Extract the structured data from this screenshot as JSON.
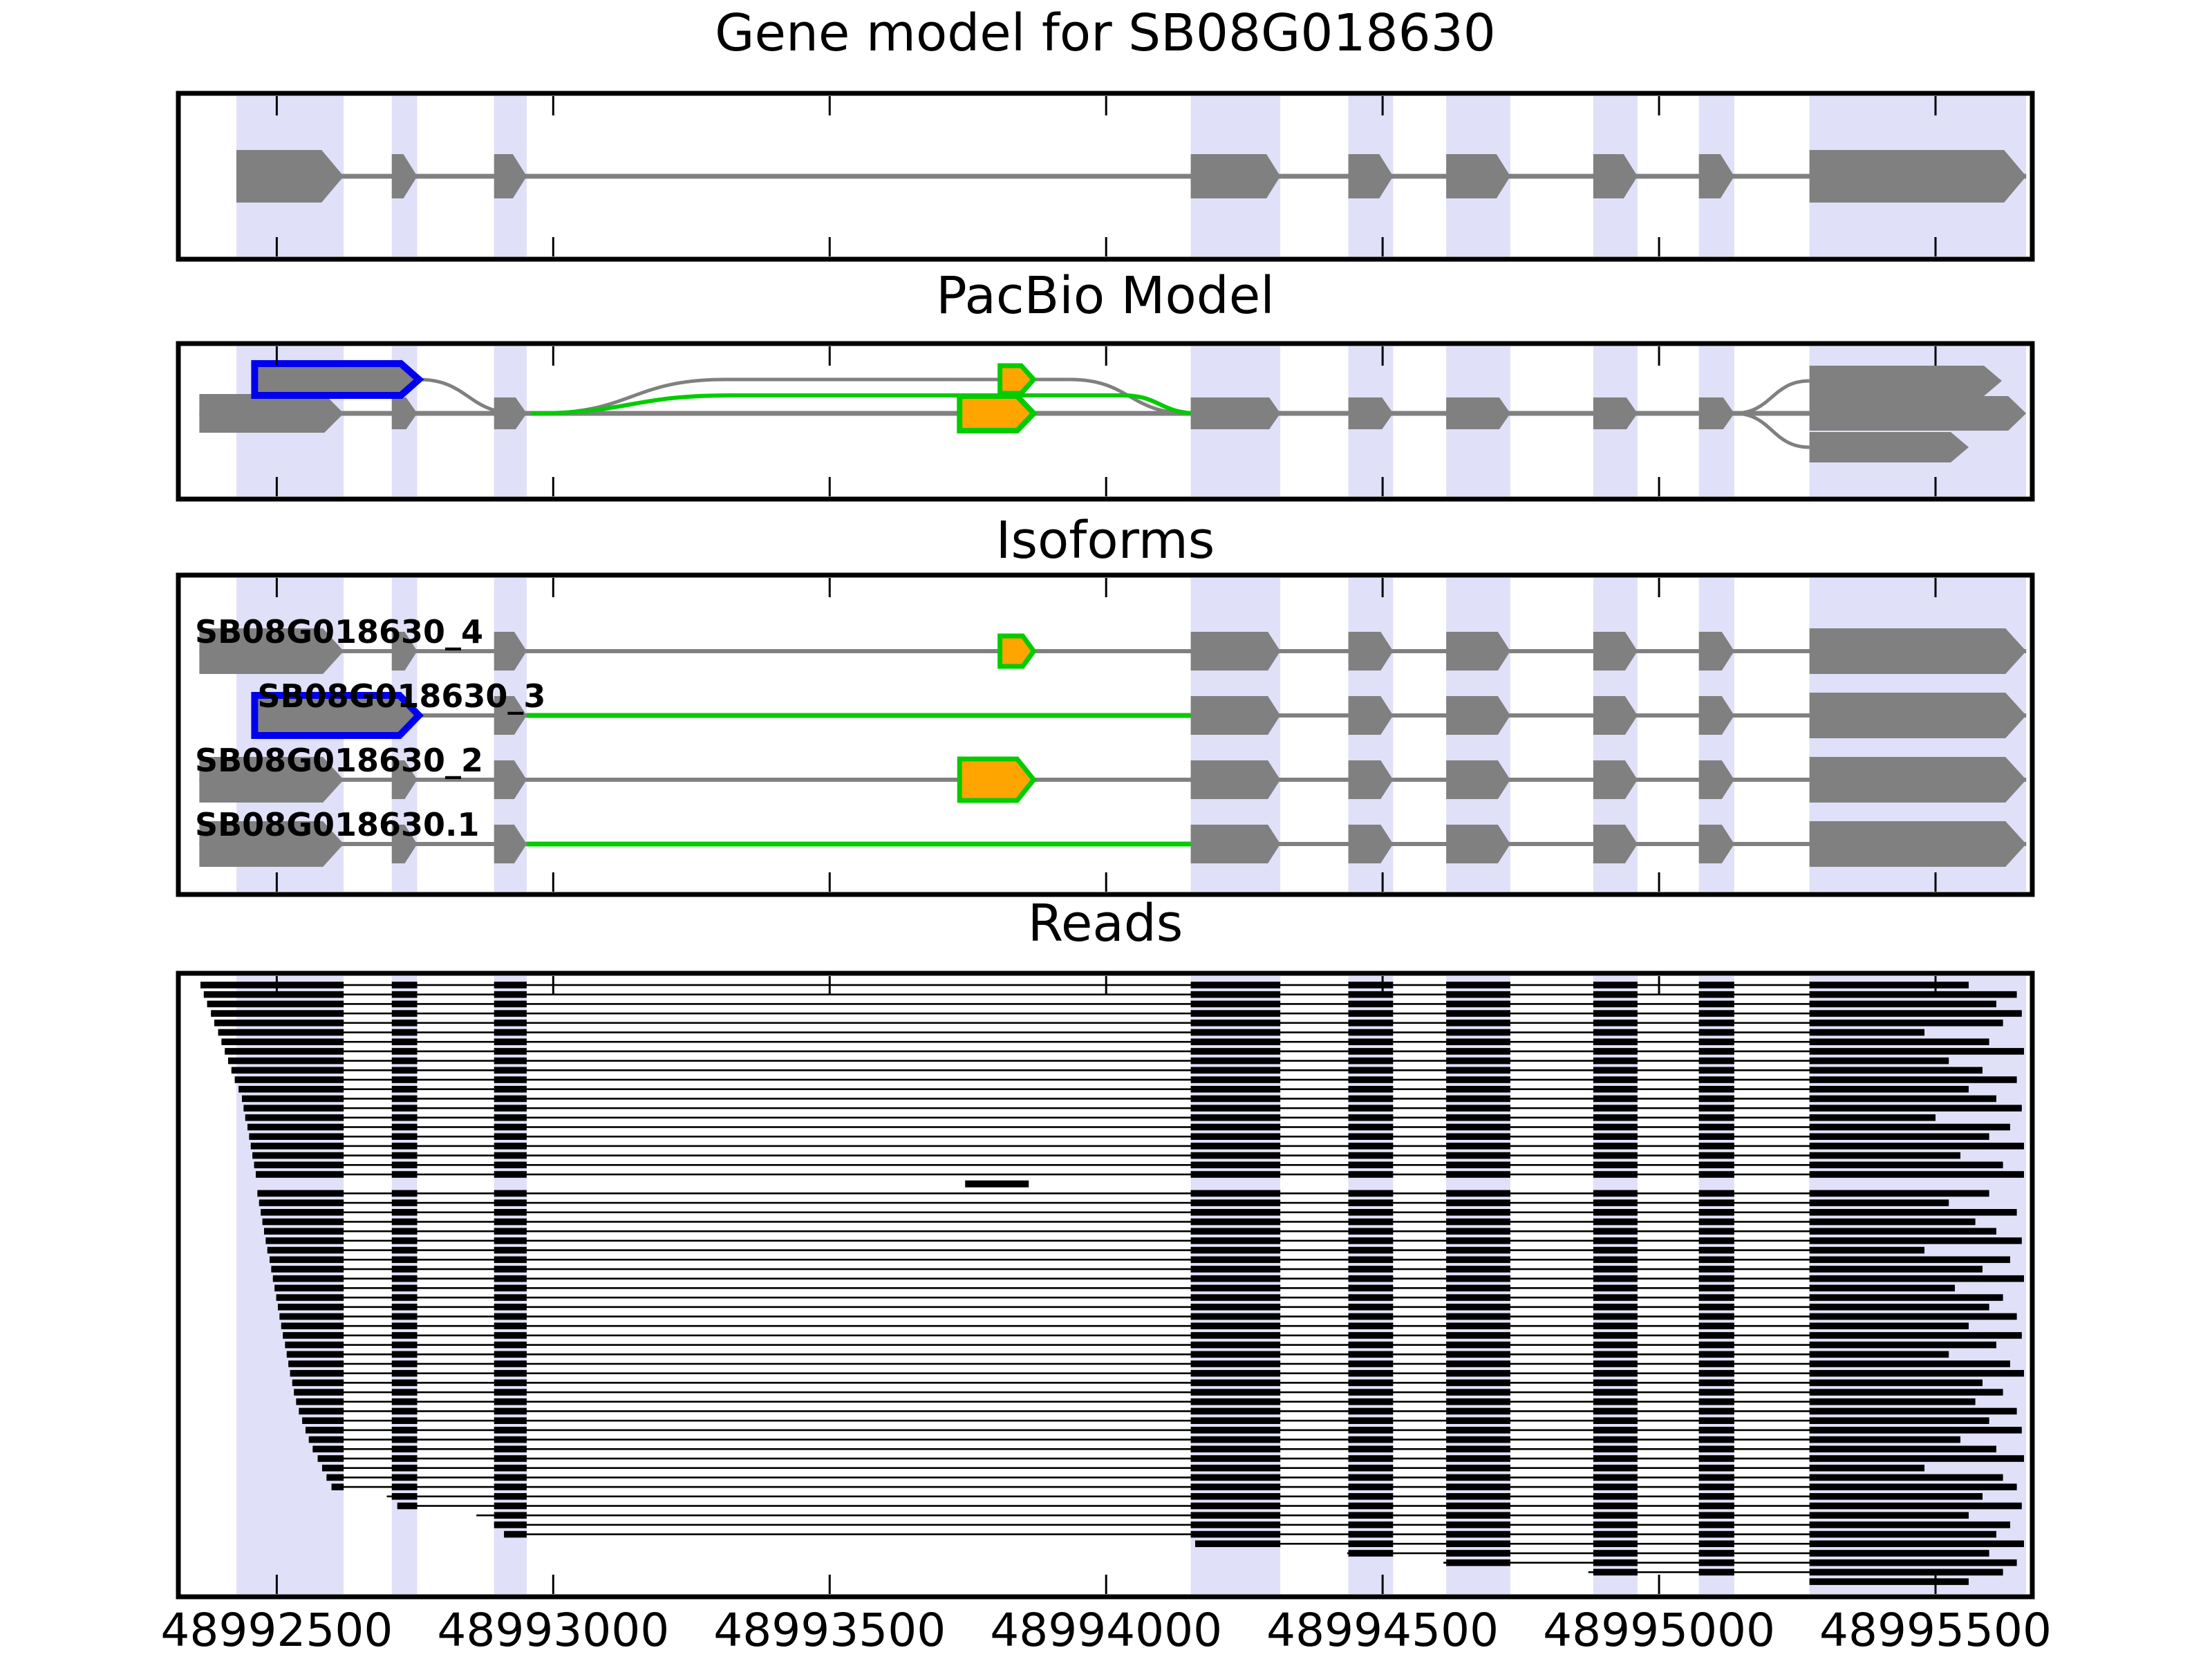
{
  "chart_data": {
    "type": "other",
    "subtype": "genome-browser-tracks",
    "titles": {
      "gene_model": "Gene model for SB08G018630",
      "pacbio": "PacBio Model",
      "isoforms": "Isoforms",
      "reads": "Reads"
    },
    "axis": {
      "bp_min": 48992322,
      "bp_max": 48995675,
      "ticks": [
        48992500,
        48993000,
        48993500,
        48994000,
        48994500,
        48995000,
        48995500
      ],
      "tick_labels": [
        "48992500",
        "48993000",
        "48993500",
        "48994000",
        "48994500",
        "48995000",
        "48995500"
      ]
    },
    "colors": {
      "exon": "#808080",
      "intron_line": "#808080",
      "band": "#e0e0f8",
      "blue": "#0000ee",
      "green": "#00cc00",
      "orange": "#ffa500",
      "read": "#000000",
      "border": "#000000"
    },
    "gene_exons": [
      {
        "s": 48992427,
        "e": 48992621,
        "big": true
      },
      {
        "s": 48992708,
        "e": 48992754
      },
      {
        "s": 48992893,
        "e": 48992952
      },
      {
        "s": 48994153,
        "e": 48994315
      },
      {
        "s": 48994438,
        "e": 48994519
      },
      {
        "s": 48994615,
        "e": 48994731
      },
      {
        "s": 48994881,
        "e": 48994961
      },
      {
        "s": 48995072,
        "e": 48995136
      },
      {
        "s": 48995272,
        "e": 48995664,
        "big": true
      }
    ],
    "pacbio": {
      "main_exons": [
        {
          "s": 48992360,
          "e": 48992621,
          "big": true
        },
        {
          "s": 48992708,
          "e": 48992754
        },
        {
          "s": 48992893,
          "e": 48992952
        },
        {
          "s": 48994153,
          "e": 48994315
        },
        {
          "s": 48994438,
          "e": 48994519
        },
        {
          "s": 48994615,
          "e": 48994731
        },
        {
          "s": 48994881,
          "e": 48994961
        },
        {
          "s": 48995072,
          "e": 48995136
        }
      ],
      "blue_exon": {
        "s": 48992460,
        "e": 48992757
      },
      "orange_small": {
        "s": 48993808,
        "e": 48993869
      },
      "orange_large": {
        "s": 48993735,
        "e": 48993869
      },
      "three_prime_ends": [
        {
          "s": 48995272,
          "e": 48995620,
          "pos": "top"
        },
        {
          "s": 48995272,
          "e": 48995664,
          "pos": "mid"
        },
        {
          "s": 48995272,
          "e": 48995560,
          "pos": "bottom"
        }
      ],
      "skip_junction": {
        "from": 48992975,
        "flat_start": 48993310,
        "flat_end": 48993935,
        "to": 48994150
      },
      "green_junction": {
        "from": 48992960,
        "flat_start": 48993320,
        "flat_end": 48994030,
        "to": 48994165
      },
      "blue_drop": {
        "from": 48992757,
        "to": 48992935
      }
    },
    "isoforms": {
      "rows": [
        {
          "label": "SB08G018630_4",
          "label_bp": 48992352,
          "exons": [
            {
              "s": 48992360,
              "e": 48992621,
              "big": true
            },
            {
              "s": 48992708,
              "e": 48992754
            },
            {
              "s": 48992893,
              "e": 48992952
            },
            {
              "s": 48993808,
              "e": 48993869,
              "style": "orange"
            },
            {
              "s": 48994153,
              "e": 48994315
            },
            {
              "s": 48994438,
              "e": 48994519
            },
            {
              "s": 48994615,
              "e": 48994731
            },
            {
              "s": 48994881,
              "e": 48994961
            },
            {
              "s": 48995072,
              "e": 48995136
            },
            {
              "s": 48995272,
              "e": 48995664,
              "big": true
            }
          ]
        },
        {
          "label": "SB08G018630_3",
          "label_bp": 48992465,
          "green_span": [
            48992952,
            48994153
          ],
          "exons": [
            {
              "s": 48992460,
              "e": 48992757,
              "style": "blue",
              "big": true
            },
            {
              "s": 48992893,
              "e": 48992952
            },
            {
              "s": 48994153,
              "e": 48994315
            },
            {
              "s": 48994438,
              "e": 48994519
            },
            {
              "s": 48994615,
              "e": 48994731
            },
            {
              "s": 48994881,
              "e": 48994961
            },
            {
              "s": 48995072,
              "e": 48995136
            },
            {
              "s": 48995272,
              "e": 48995664,
              "big": true
            }
          ]
        },
        {
          "label": "SB08G018630_2",
          "label_bp": 48992352,
          "exons": [
            {
              "s": 48992360,
              "e": 48992621,
              "big": true
            },
            {
              "s": 48992708,
              "e": 48992754
            },
            {
              "s": 48992893,
              "e": 48992952
            },
            {
              "s": 48993735,
              "e": 48993869,
              "style": "orange",
              "big": true
            },
            {
              "s": 48994153,
              "e": 48994315
            },
            {
              "s": 48994438,
              "e": 48994519
            },
            {
              "s": 48994615,
              "e": 48994731
            },
            {
              "s": 48994881,
              "e": 48994961
            },
            {
              "s": 48995072,
              "e": 48995136
            },
            {
              "s": 48995272,
              "e": 48995664,
              "big": true
            }
          ]
        },
        {
          "label": "SB08G018630.1",
          "label_bp": 48992352,
          "green_span": [
            48992952,
            48994153
          ],
          "exons": [
            {
              "s": 48992360,
              "e": 48992621,
              "big": true
            },
            {
              "s": 48992708,
              "e": 48992754
            },
            {
              "s": 48992893,
              "e": 48992952
            },
            {
              "s": 48994153,
              "e": 48994315
            },
            {
              "s": 48994438,
              "e": 48994519
            },
            {
              "s": 48994615,
              "e": 48994731
            },
            {
              "s": 48994881,
              "e": 48994961
            },
            {
              "s": 48995072,
              "e": 48995136
            },
            {
              "s": 48995272,
              "e": 48995664,
              "big": true
            }
          ]
        }
      ]
    },
    "reads": {
      "block_exons": [
        [
          48992360,
          48992621
        ],
        [
          48992708,
          48992754
        ],
        [
          48992893,
          48992952
        ],
        [
          48994153,
          48994315
        ],
        [
          48994438,
          48994519
        ],
        [
          48994615,
          48994731
        ],
        [
          48994881,
          48994961
        ],
        [
          48995072,
          48995136
        ],
        [
          48995272,
          48995664
        ]
      ],
      "rows": [
        {
          "s": 48992362,
          "e": 48995560
        },
        {
          "s": 48992368,
          "e": 48995647
        },
        {
          "s": 48992374,
          "e": 48995610
        },
        {
          "s": 48992381,
          "e": 48995656
        },
        {
          "s": 48992387,
          "e": 48995622
        },
        {
          "s": 48992394,
          "e": 48995480
        },
        {
          "s": 48992400,
          "e": 48995597
        },
        {
          "s": 48992406,
          "e": 48995660
        },
        {
          "s": 48992412,
          "e": 48995524
        },
        {
          "s": 48992418,
          "e": 48995585
        },
        {
          "s": 48992424,
          "e": 48995647
        },
        {
          "s": 48992431,
          "e": 48995560
        },
        {
          "s": 48992437,
          "e": 48995610
        },
        {
          "s": 48992440,
          "e": 48995656
        },
        {
          "s": 48992443,
          "e": 48995500
        },
        {
          "s": 48992447,
          "e": 48995635
        },
        {
          "s": 48992450,
          "e": 48995597
        },
        {
          "s": 48992453,
          "e": 48995660
        },
        {
          "s": 48992456,
          "e": 48995545
        },
        {
          "s": 48992459,
          "e": 48995622
        },
        {
          "s": 48992462,
          "e": 48995660
        },
        {
          "s": 48993745,
          "e": 48993860,
          "solo": true
        },
        {
          "s": 48992465,
          "e": 48995597
        },
        {
          "s": 48992468,
          "e": 48995524
        },
        {
          "s": 48992471,
          "e": 48995647
        },
        {
          "s": 48992474,
          "e": 48995572
        },
        {
          "s": 48992477,
          "e": 48995610
        },
        {
          "s": 48992480,
          "e": 48995656
        },
        {
          "s": 48992483,
          "e": 48995480
        },
        {
          "s": 48992487,
          "e": 48995635
        },
        {
          "s": 48992490,
          "e": 48995585
        },
        {
          "s": 48992493,
          "e": 48995660
        },
        {
          "s": 48992496,
          "e": 48995535
        },
        {
          "s": 48992499,
          "e": 48995622
        },
        {
          "s": 48992502,
          "e": 48995597
        },
        {
          "s": 48992505,
          "e": 48995647
        },
        {
          "s": 48992508,
          "e": 48995560
        },
        {
          "s": 48992511,
          "e": 48995656
        },
        {
          "s": 48992515,
          "e": 48995610
        },
        {
          "s": 48992518,
          "e": 48995524
        },
        {
          "s": 48992521,
          "e": 48995635
        },
        {
          "s": 48992524,
          "e": 48995660
        },
        {
          "s": 48992528,
          "e": 48995585
        },
        {
          "s": 48992531,
          "e": 48995622
        },
        {
          "s": 48992535,
          "e": 48995572
        },
        {
          "s": 48992540,
          "e": 48995647
        },
        {
          "s": 48992546,
          "e": 48995597
        },
        {
          "s": 48992552,
          "e": 48995656
        },
        {
          "s": 48992558,
          "e": 48995545
        },
        {
          "s": 48992565,
          "e": 48995610
        },
        {
          "s": 48992574,
          "e": 48995660
        },
        {
          "s": 48992582,
          "e": 48995480
        },
        {
          "s": 48992590,
          "e": 48995622
        },
        {
          "s": 48992599,
          "e": 48995647
        },
        {
          "s": 48992699,
          "e": 48995585
        },
        {
          "s": 48992718,
          "e": 48995656
        },
        {
          "s": 48992861,
          "e": 48995560
        },
        {
          "s": 48992893,
          "e": 48995635
        },
        {
          "s": 48992911,
          "e": 48995610
        },
        {
          "s": 48994161,
          "e": 48995660
        },
        {
          "s": 48994436,
          "e": 48995597
        },
        {
          "s": 48994610,
          "e": 48995647
        },
        {
          "s": 48994872,
          "e": 48995622
        },
        {
          "s": 48995272,
          "e": 48995560
        }
      ]
    }
  }
}
